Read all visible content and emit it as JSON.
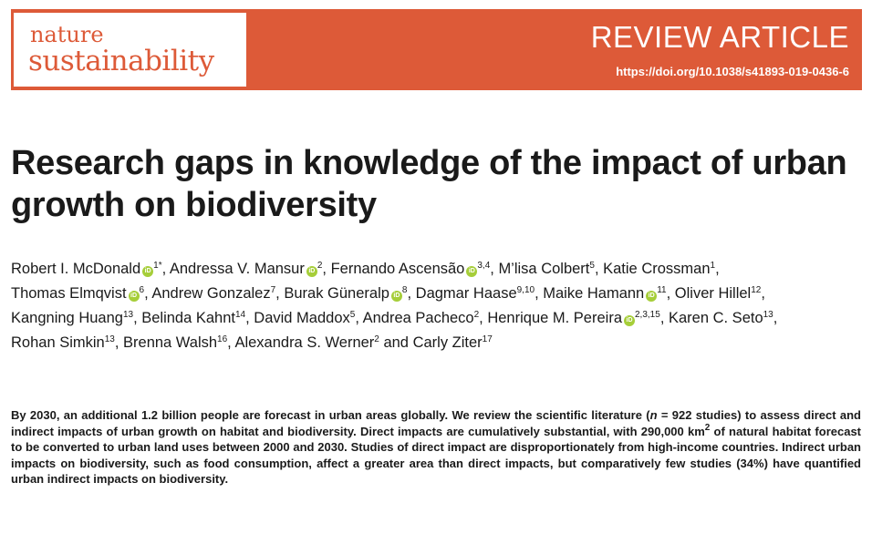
{
  "header": {
    "journal_line1": "nature",
    "journal_line2": "sustainability",
    "article_type": "REVIEW ARTICLE",
    "doi": "https://doi.org/10.1038/s41893-019-0436-6",
    "accent_color": "#dd5a38",
    "orcid_color": "#a6ce39"
  },
  "title": "Research gaps in knowledge of the impact of urban growth on biodiversity",
  "authors": [
    {
      "name": "Robert I. McDonald",
      "orcid": true,
      "aff": "1*"
    },
    {
      "name": "Andressa V. Mansur",
      "orcid": true,
      "aff": "2"
    },
    {
      "name": "Fernando Ascensão",
      "orcid": true,
      "aff": "3,4"
    },
    {
      "name": "M’lisa Colbert",
      "orcid": false,
      "aff": "5"
    },
    {
      "name": "Katie Crossman",
      "orcid": false,
      "aff": "1"
    },
    {
      "name": "Thomas Elmqvist",
      "orcid": true,
      "aff": "6"
    },
    {
      "name": "Andrew Gonzalez",
      "orcid": false,
      "aff": "7"
    },
    {
      "name": "Burak Güneralp",
      "orcid": true,
      "aff": "8"
    },
    {
      "name": "Dagmar Haase",
      "orcid": false,
      "aff": "9,10"
    },
    {
      "name": "Maike Hamann",
      "orcid": true,
      "aff": "11"
    },
    {
      "name": "Oliver Hillel",
      "orcid": false,
      "aff": "12"
    },
    {
      "name": "Kangning Huang",
      "orcid": false,
      "aff": "13"
    },
    {
      "name": "Belinda Kahnt",
      "orcid": false,
      "aff": "14"
    },
    {
      "name": "David Maddox",
      "orcid": false,
      "aff": "5"
    },
    {
      "name": "Andrea Pacheco",
      "orcid": false,
      "aff": "2"
    },
    {
      "name": "Henrique M. Pereira",
      "orcid": true,
      "aff": "2,3,15"
    },
    {
      "name": "Karen C. Seto",
      "orcid": false,
      "aff": "13"
    },
    {
      "name": "Rohan Simkin",
      "orcid": false,
      "aff": "13"
    },
    {
      "name": "Brenna Walsh",
      "orcid": false,
      "aff": "16"
    },
    {
      "name": "Alexandra S. Werner",
      "orcid": false,
      "aff": "2"
    },
    {
      "name": "Carly Ziter",
      "orcid": false,
      "aff": "17"
    }
  ],
  "abstract": {
    "p1": "By 2030, an additional 1.2 billion people are forecast in urban areas globally. We review the scientific literature (",
    "n_symbol": "n",
    "p2": " = 922 studies) to assess direct and indirect impacts of urban growth on habitat and biodiversity. Direct impacts are cumulatively substantial, with 290,000 km",
    "sup": "2",
    "p3": " of natural habitat forecast to be converted to urban land uses between 2000 and 2030. Studies of direct impact are disproportionately from high-income countries. Indirect urban impacts on biodiversity, such as food consumption, affect a greater area than direct impacts, but comparatively few studies (34%) have quantified urban indirect impacts on biodiversity."
  }
}
